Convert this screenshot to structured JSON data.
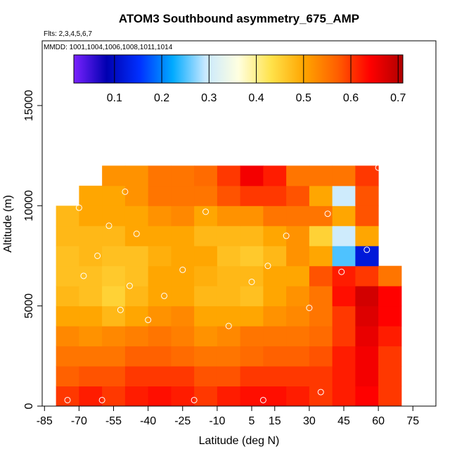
{
  "chart_data": {
    "type": "heatmap",
    "title": "ATOM3 Southbound asymmetry_675_AMP",
    "subtitles": [
      "Flts: 2,3,4,5,6,7",
      "MMDD: 1001,1004,1006,1008,1011,1014"
    ],
    "x_label": "Latitude (deg N)",
    "y_label": "Altitude (m)",
    "xlim": [
      -86,
      85
    ],
    "ylim": [
      0,
      18230
    ],
    "xticks": [
      -85,
      -70,
      -55,
      -40,
      -25,
      -10,
      5,
      15,
      30,
      45,
      60,
      75
    ],
    "yticks": [
      0,
      5000,
      10000,
      15000
    ],
    "x_edges": [
      -80,
      -70,
      -60,
      -50,
      -40,
      -30,
      -20,
      -10,
      0,
      10,
      20,
      30,
      40,
      50,
      60,
      70
    ],
    "y_edges": [
      0,
      1000,
      2000,
      3000,
      4000,
      5000,
      6000,
      7000,
      8000,
      9000,
      10000,
      11000,
      12000
    ],
    "values": [
      [
        0.6,
        0.62,
        0.6,
        0.62,
        0.63,
        0.62,
        0.6,
        0.62,
        0.63,
        0.63,
        0.62,
        0.6,
        0.62,
        0.64,
        0.6
      ],
      [
        0.57,
        0.58,
        0.58,
        0.6,
        0.6,
        0.6,
        0.58,
        0.58,
        0.6,
        0.6,
        0.6,
        0.6,
        0.62,
        0.65,
        0.6
      ],
      [
        0.55,
        0.55,
        0.55,
        0.57,
        0.57,
        0.56,
        0.55,
        0.55,
        0.56,
        0.57,
        0.57,
        0.58,
        0.62,
        0.65,
        0.6
      ],
      [
        0.53,
        0.52,
        0.53,
        0.54,
        0.55,
        0.54,
        0.52,
        0.53,
        0.55,
        0.55,
        0.55,
        0.56,
        0.6,
        0.66,
        0.62
      ],
      [
        0.5,
        0.5,
        0.48,
        0.5,
        0.52,
        0.53,
        0.5,
        0.5,
        0.5,
        0.52,
        0.53,
        0.55,
        0.6,
        0.67,
        0.64
      ],
      [
        0.48,
        0.47,
        0.45,
        0.48,
        0.5,
        0.5,
        0.48,
        0.48,
        0.47,
        0.5,
        0.52,
        0.55,
        0.63,
        0.68,
        0.64
      ],
      [
        0.47,
        0.47,
        0.46,
        0.47,
        0.5,
        0.5,
        0.49,
        0.48,
        0.48,
        0.5,
        0.5,
        0.58,
        0.62,
        0.6,
        0.55
      ],
      [
        0.47,
        0.48,
        0.47,
        0.47,
        0.49,
        0.5,
        0.5,
        0.47,
        0.46,
        0.48,
        0.52,
        0.5,
        0.25,
        0.12,
        null
      ],
      [
        0.48,
        0.48,
        0.48,
        0.5,
        0.5,
        0.5,
        0.48,
        0.48,
        0.48,
        0.5,
        0.52,
        0.45,
        0.3,
        0.5,
        null
      ],
      [
        0.48,
        0.5,
        0.5,
        0.5,
        0.52,
        0.53,
        0.5,
        0.52,
        0.52,
        0.55,
        0.55,
        0.55,
        0.5,
        0.58,
        null
      ],
      [
        null,
        0.5,
        0.5,
        0.52,
        0.55,
        0.55,
        0.55,
        0.58,
        0.6,
        0.6,
        0.58,
        0.5,
        0.3,
        0.58,
        null
      ],
      [
        null,
        null,
        0.52,
        0.52,
        0.55,
        0.55,
        0.56,
        0.6,
        0.65,
        0.62,
        0.55,
        0.55,
        0.55,
        0.6,
        null
      ]
    ],
    "points": {
      "x": [
        -75,
        -68,
        -62,
        -57,
        -52,
        -48,
        -45,
        -40,
        -33,
        -25,
        -15,
        -5,
        5,
        12,
        20,
        30,
        38,
        44,
        55,
        60,
        -70,
        -60,
        -50,
        -20,
        10,
        35
      ],
      "y": [
        300,
        6500,
        7500,
        9000,
        4800,
        6000,
        8600,
        4300,
        5500,
        6800,
        9700,
        4000,
        6200,
        7000,
        8500,
        4900,
        9600,
        6700,
        7800,
        11900,
        9900,
        300,
        10700,
        300,
        300,
        700
      ]
    },
    "colorbar": {
      "lim": [
        0.014,
        0.71
      ],
      "ticks": [
        0.1,
        0.2,
        0.3,
        0.4,
        0.5,
        0.6,
        0.7
      ],
      "colors": [
        "#7a22ff",
        "#0000b0",
        "#0030ff",
        "#00aaff",
        "#c8e8ff",
        "#ffffe0",
        "#ffe24a",
        "#ffa500",
        "#ff6000",
        "#ff0000",
        "#b00000"
      ]
    }
  }
}
